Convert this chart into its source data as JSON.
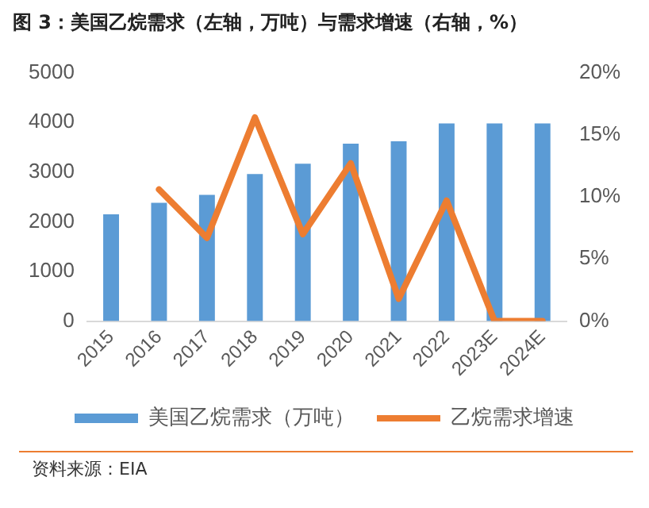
{
  "chart_data": {
    "type": "bar",
    "title": "图 3：美国乙烷需求（左轴，万吨）与需求增速（右轴，%）",
    "categories": [
      "2015",
      "2016",
      "2017",
      "2018",
      "2019",
      "2020",
      "2021",
      "2022",
      "2023E",
      "2024E"
    ],
    "series": [
      {
        "name": "美国乙烷需求（万吨）",
        "color": "#5b9bd5",
        "values": [
          2150,
          2380,
          2540,
          2960,
          3170,
          3570,
          3620,
          3980,
          3980,
          3980
        ]
      },
      {
        "name": "乙烷需求增速",
        "type": "line",
        "axis": "y2",
        "color": "#ed7d31",
        "values": [
          null,
          10.6,
          6.7,
          16.4,
          7.0,
          12.7,
          1.8,
          9.7,
          0,
          0
        ]
      }
    ],
    "ylim": [
      0,
      5000
    ],
    "yticks": [
      0,
      1000,
      2000,
      3000,
      4000,
      5000
    ],
    "y2lim": [
      0,
      20
    ],
    "y2ticks": [
      {
        "value": 0,
        "label": "0%"
      },
      {
        "value": 5,
        "label": "5%"
      },
      {
        "value": 10,
        "label": "10%"
      },
      {
        "value": 15,
        "label": "15%"
      },
      {
        "value": 20,
        "label": "20%"
      }
    ],
    "grid": false,
    "legend": "bottom",
    "marker": "none",
    "annotations": [
      "资料来源：EIA"
    ]
  }
}
